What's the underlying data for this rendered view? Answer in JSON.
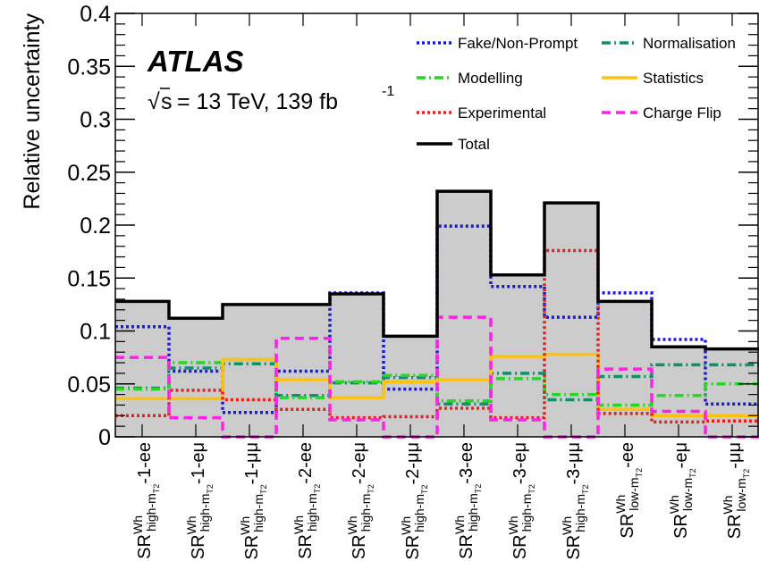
{
  "chart_data": {
    "type": "step",
    "ylabel": "Relative uncertainty",
    "ylim": [
      0,
      0.4
    ],
    "yticks": [
      {
        "v": 0,
        "label": "0"
      },
      {
        "v": 0.05,
        "label": "0.05"
      },
      {
        "v": 0.1,
        "label": "0.1"
      },
      {
        "v": 0.15,
        "label": "0.15"
      },
      {
        "v": 0.2,
        "label": "0.2"
      },
      {
        "v": 0.25,
        "label": "0.25"
      },
      {
        "v": 0.3,
        "label": "0.3"
      },
      {
        "v": 0.35,
        "label": "0.35"
      },
      {
        "v": 0.4,
        "label": "0.4"
      }
    ],
    "experiment_label": "ATLAS",
    "energy_label": {
      "root": "s",
      "rest": " = 13 TeV, 139 fb",
      "sup": "-1"
    },
    "categories": [
      {
        "sr": "SR",
        "sup": "Wh",
        "sub": "high-m",
        "subsub": "T2",
        "suffix": "-1-ee"
      },
      {
        "sr": "SR",
        "sup": "Wh",
        "sub": "high-m",
        "subsub": "T2",
        "suffix": "-1-eμ"
      },
      {
        "sr": "SR",
        "sup": "Wh",
        "sub": "high-m",
        "subsub": "T2",
        "suffix": "-1-μμ"
      },
      {
        "sr": "SR",
        "sup": "Wh",
        "sub": "high-m",
        "subsub": "T2",
        "suffix": "-2-ee"
      },
      {
        "sr": "SR",
        "sup": "Wh",
        "sub": "high-m",
        "subsub": "T2",
        "suffix": "-2-eμ"
      },
      {
        "sr": "SR",
        "sup": "Wh",
        "sub": "high-m",
        "subsub": "T2",
        "suffix": "-2-μμ"
      },
      {
        "sr": "SR",
        "sup": "Wh",
        "sub": "high-m",
        "subsub": "T2",
        "suffix": "-3-ee"
      },
      {
        "sr": "SR",
        "sup": "Wh",
        "sub": "high-m",
        "subsub": "T2",
        "suffix": "-3-eμ"
      },
      {
        "sr": "SR",
        "sup": "Wh",
        "sub": "high-m",
        "subsub": "T2",
        "suffix": "-3-μμ"
      },
      {
        "sr": "SR",
        "sup": "Wh",
        "sub": "low-m",
        "subsub": "T2",
        "suffix": "-ee"
      },
      {
        "sr": "SR",
        "sup": "Wh",
        "sub": "low-m",
        "subsub": "T2",
        "suffix": "-eμ"
      },
      {
        "sr": "SR",
        "sup": "Wh",
        "sub": "low-m",
        "subsub": "T2",
        "suffix": "-μμ"
      }
    ],
    "total": {
      "name": "Total",
      "color": "#000000",
      "values": [
        0.128,
        0.112,
        0.125,
        0.125,
        0.135,
        0.095,
        0.232,
        0.153,
        0.221,
        0.128,
        0.085,
        0.083
      ]
    },
    "series": [
      {
        "name": "Fake/Non-Prompt",
        "color": "#1a1adb",
        "style": "dotted",
        "values": [
          0.104,
          0.062,
          0.023,
          0.062,
          0.136,
          0.045,
          0.199,
          0.142,
          0.113,
          0.136,
          0.092,
          0.031
        ]
      },
      {
        "name": "Normalisation",
        "color": "#0f8f6a",
        "style": "dashdot",
        "values": [
          0.046,
          0.065,
          0.069,
          0.039,
          0.051,
          0.056,
          0.031,
          0.06,
          0.035,
          0.057,
          0.068,
          0.068
        ]
      },
      {
        "name": "Modelling",
        "color": "#27d627",
        "style": "dashdot",
        "values": [
          0.045,
          0.07,
          0.073,
          0.037,
          0.052,
          0.058,
          0.034,
          0.055,
          0.04,
          0.03,
          0.039,
          0.05
        ]
      },
      {
        "name": "Statistics",
        "color": "#ffc20e",
        "style": "solid",
        "values": [
          0.036,
          0.036,
          0.073,
          0.054,
          0.037,
          0.052,
          0.054,
          0.076,
          0.078,
          0.026,
          0.02,
          0.02
        ]
      },
      {
        "name": "Experimental",
        "color": "#e62020",
        "style": "dotted",
        "values": [
          0.02,
          0.044,
          0.035,
          0.026,
          0.018,
          0.019,
          0.027,
          0.018,
          0.176,
          0.022,
          0.014,
          0.015
        ]
      },
      {
        "name": "Charge Flip",
        "color": "#ff22e6",
        "style": "dashed",
        "values": [
          0.075,
          0.018,
          0.0,
          0.093,
          0.016,
          0.0,
          0.113,
          0.016,
          0.0,
          0.064,
          0.024,
          0.0
        ]
      }
    ],
    "legend": {
      "placement": "top-right",
      "entries": [
        {
          "name": "Fake/Non-Prompt",
          "color": "#1a1adb",
          "style": "dotted"
        },
        {
          "name": "Normalisation",
          "color": "#0f8f6a",
          "style": "dashdot"
        },
        {
          "name": "Modelling",
          "color": "#27d627",
          "style": "dashdot"
        },
        {
          "name": "Statistics",
          "color": "#ffc20e",
          "style": "solid"
        },
        {
          "name": "Experimental",
          "color": "#e62020",
          "style": "dotted"
        },
        {
          "name": "Charge Flip",
          "color": "#ff22e6",
          "style": "dashed"
        },
        {
          "name": "Total",
          "color": "#000000",
          "style": "solid"
        }
      ]
    },
    "fill_color": "#cccccc",
    "grid": false
  }
}
